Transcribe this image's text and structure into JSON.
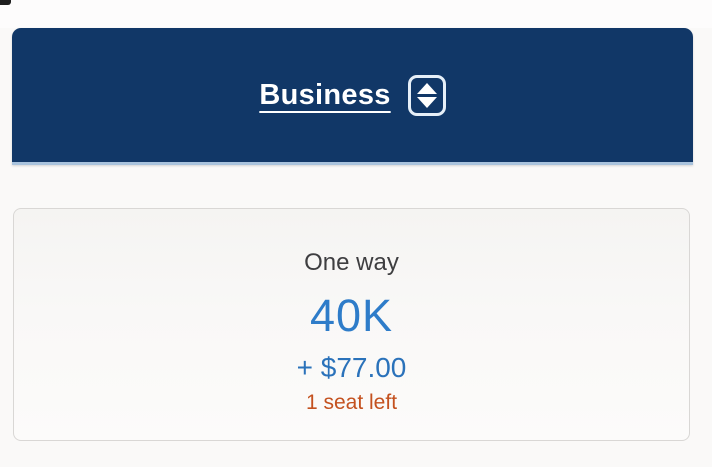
{
  "page": {
    "background_color": "#faf9f8"
  },
  "header": {
    "cabin_label": "Business",
    "background_color": "#113767",
    "bottom_border_color": "#a9c3dd",
    "text_color": "#ffffff",
    "sort_icon": "up-down-arrows-icon"
  },
  "fare_card": {
    "trip_type": "One way",
    "miles_price": "40K",
    "cash_copay": "+ $77.00",
    "availability": "1 seat left",
    "colors": {
      "trip_type": "#3e3e40",
      "miles_price": "#2e7cc9",
      "cash_copay": "#2a72ba",
      "availability": "#c4511f",
      "card_border": "#d9d7d5"
    }
  }
}
